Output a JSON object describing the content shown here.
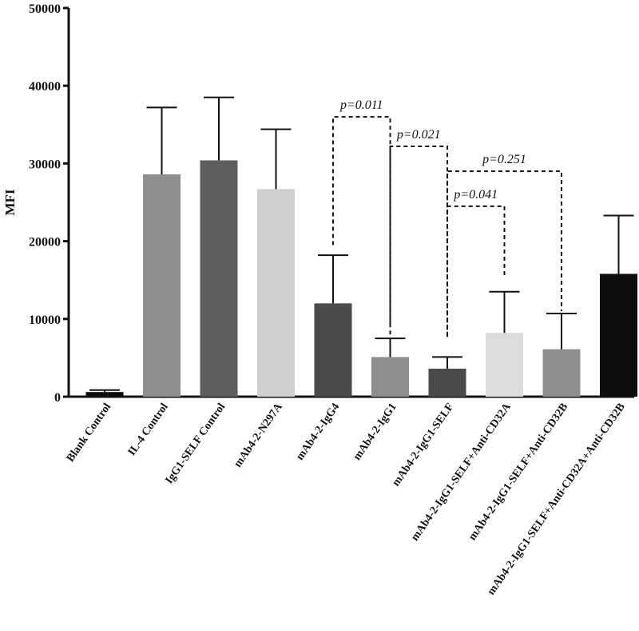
{
  "chart_data": {
    "type": "bar",
    "title": "",
    "xlabel": "",
    "ylabel": "MFI",
    "ylim": [
      0,
      50000
    ],
    "yticks": [
      0,
      10000,
      20000,
      30000,
      40000,
      50000
    ],
    "ytick_labels": [
      "0",
      "10000",
      "20000",
      "30000",
      "40000",
      "50000"
    ],
    "grid": false,
    "categories": [
      "Blank Control",
      "IL-4 Control",
      "IgG1-SELF Control",
      "mAb4-2-N297A",
      "mAb4-2-IgG4",
      "mAb4-2-IgG1",
      "mAb4-2-IgG1-SELF",
      "mAb4-2-IgG1-SELF+Anti-CD32A",
      "mAb4-2-IgG1-SELF+Anti-CD32B",
      "mAb4-2-IgG1-SELF+Anti-CD32A+Anti-CD32B"
    ],
    "values": [
      600,
      28600,
      30400,
      26700,
      12000,
      5100,
      3600,
      8200,
      6100,
      15800
    ],
    "errors": [
      250,
      8600,
      8100,
      7700,
      6200,
      2400,
      1500,
      5300,
      4600,
      7500
    ],
    "bar_colors": [
      "#0d0d0d",
      "#8e8e8e",
      "#5e5e5e",
      "#cfcfcf",
      "#4a4a4a",
      "#8e8e8e",
      "#4a4a4a",
      "#dcdcdc",
      "#8e8e8e",
      "#0d0d0d"
    ],
    "comparisons": [
      {
        "from": 4,
        "to": 5,
        "label": "p=0.011",
        "from_y": 19500,
        "to_y": 9000,
        "top": 36000
      },
      {
        "from": 5,
        "to": 6,
        "label": "p=0.021",
        "from_y": 8000,
        "to_y": 7600,
        "top": 32200
      },
      {
        "from": 6,
        "to": 8,
        "label": "p=0.251",
        "from_y": 7800,
        "to_y": 11000,
        "top": 29000
      },
      {
        "from": 6,
        "to": 7,
        "label": "p=0.041",
        "from_y": 7800,
        "to_y": 15500,
        "top": 24500
      }
    ]
  }
}
